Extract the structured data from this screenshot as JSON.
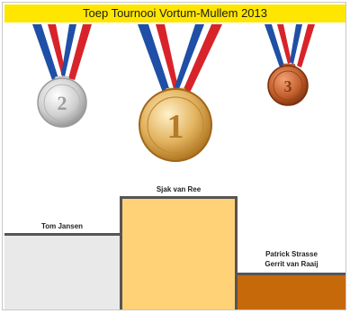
{
  "title": "Toep Tournooi Vortum-Mullem 2013",
  "medals": {
    "second": {
      "rank": "2",
      "color": "#c9c9c9"
    },
    "first": {
      "rank": "1",
      "color": "#d7a24a"
    },
    "third": {
      "rank": "3",
      "color": "#b8501f"
    }
  },
  "ribbon_colors": {
    "red": "#d8232a",
    "white": "#ffffff",
    "blue": "#1f4fa6"
  },
  "podium": {
    "second": {
      "name": "Tom Jansen",
      "color": "#e9e9e9"
    },
    "first": {
      "name": "Sjak van Ree",
      "color": "#ffd277"
    },
    "third": {
      "names": [
        "Patrick Strasse",
        "Gerrit van Raaij"
      ],
      "color": "#c6690b"
    }
  }
}
